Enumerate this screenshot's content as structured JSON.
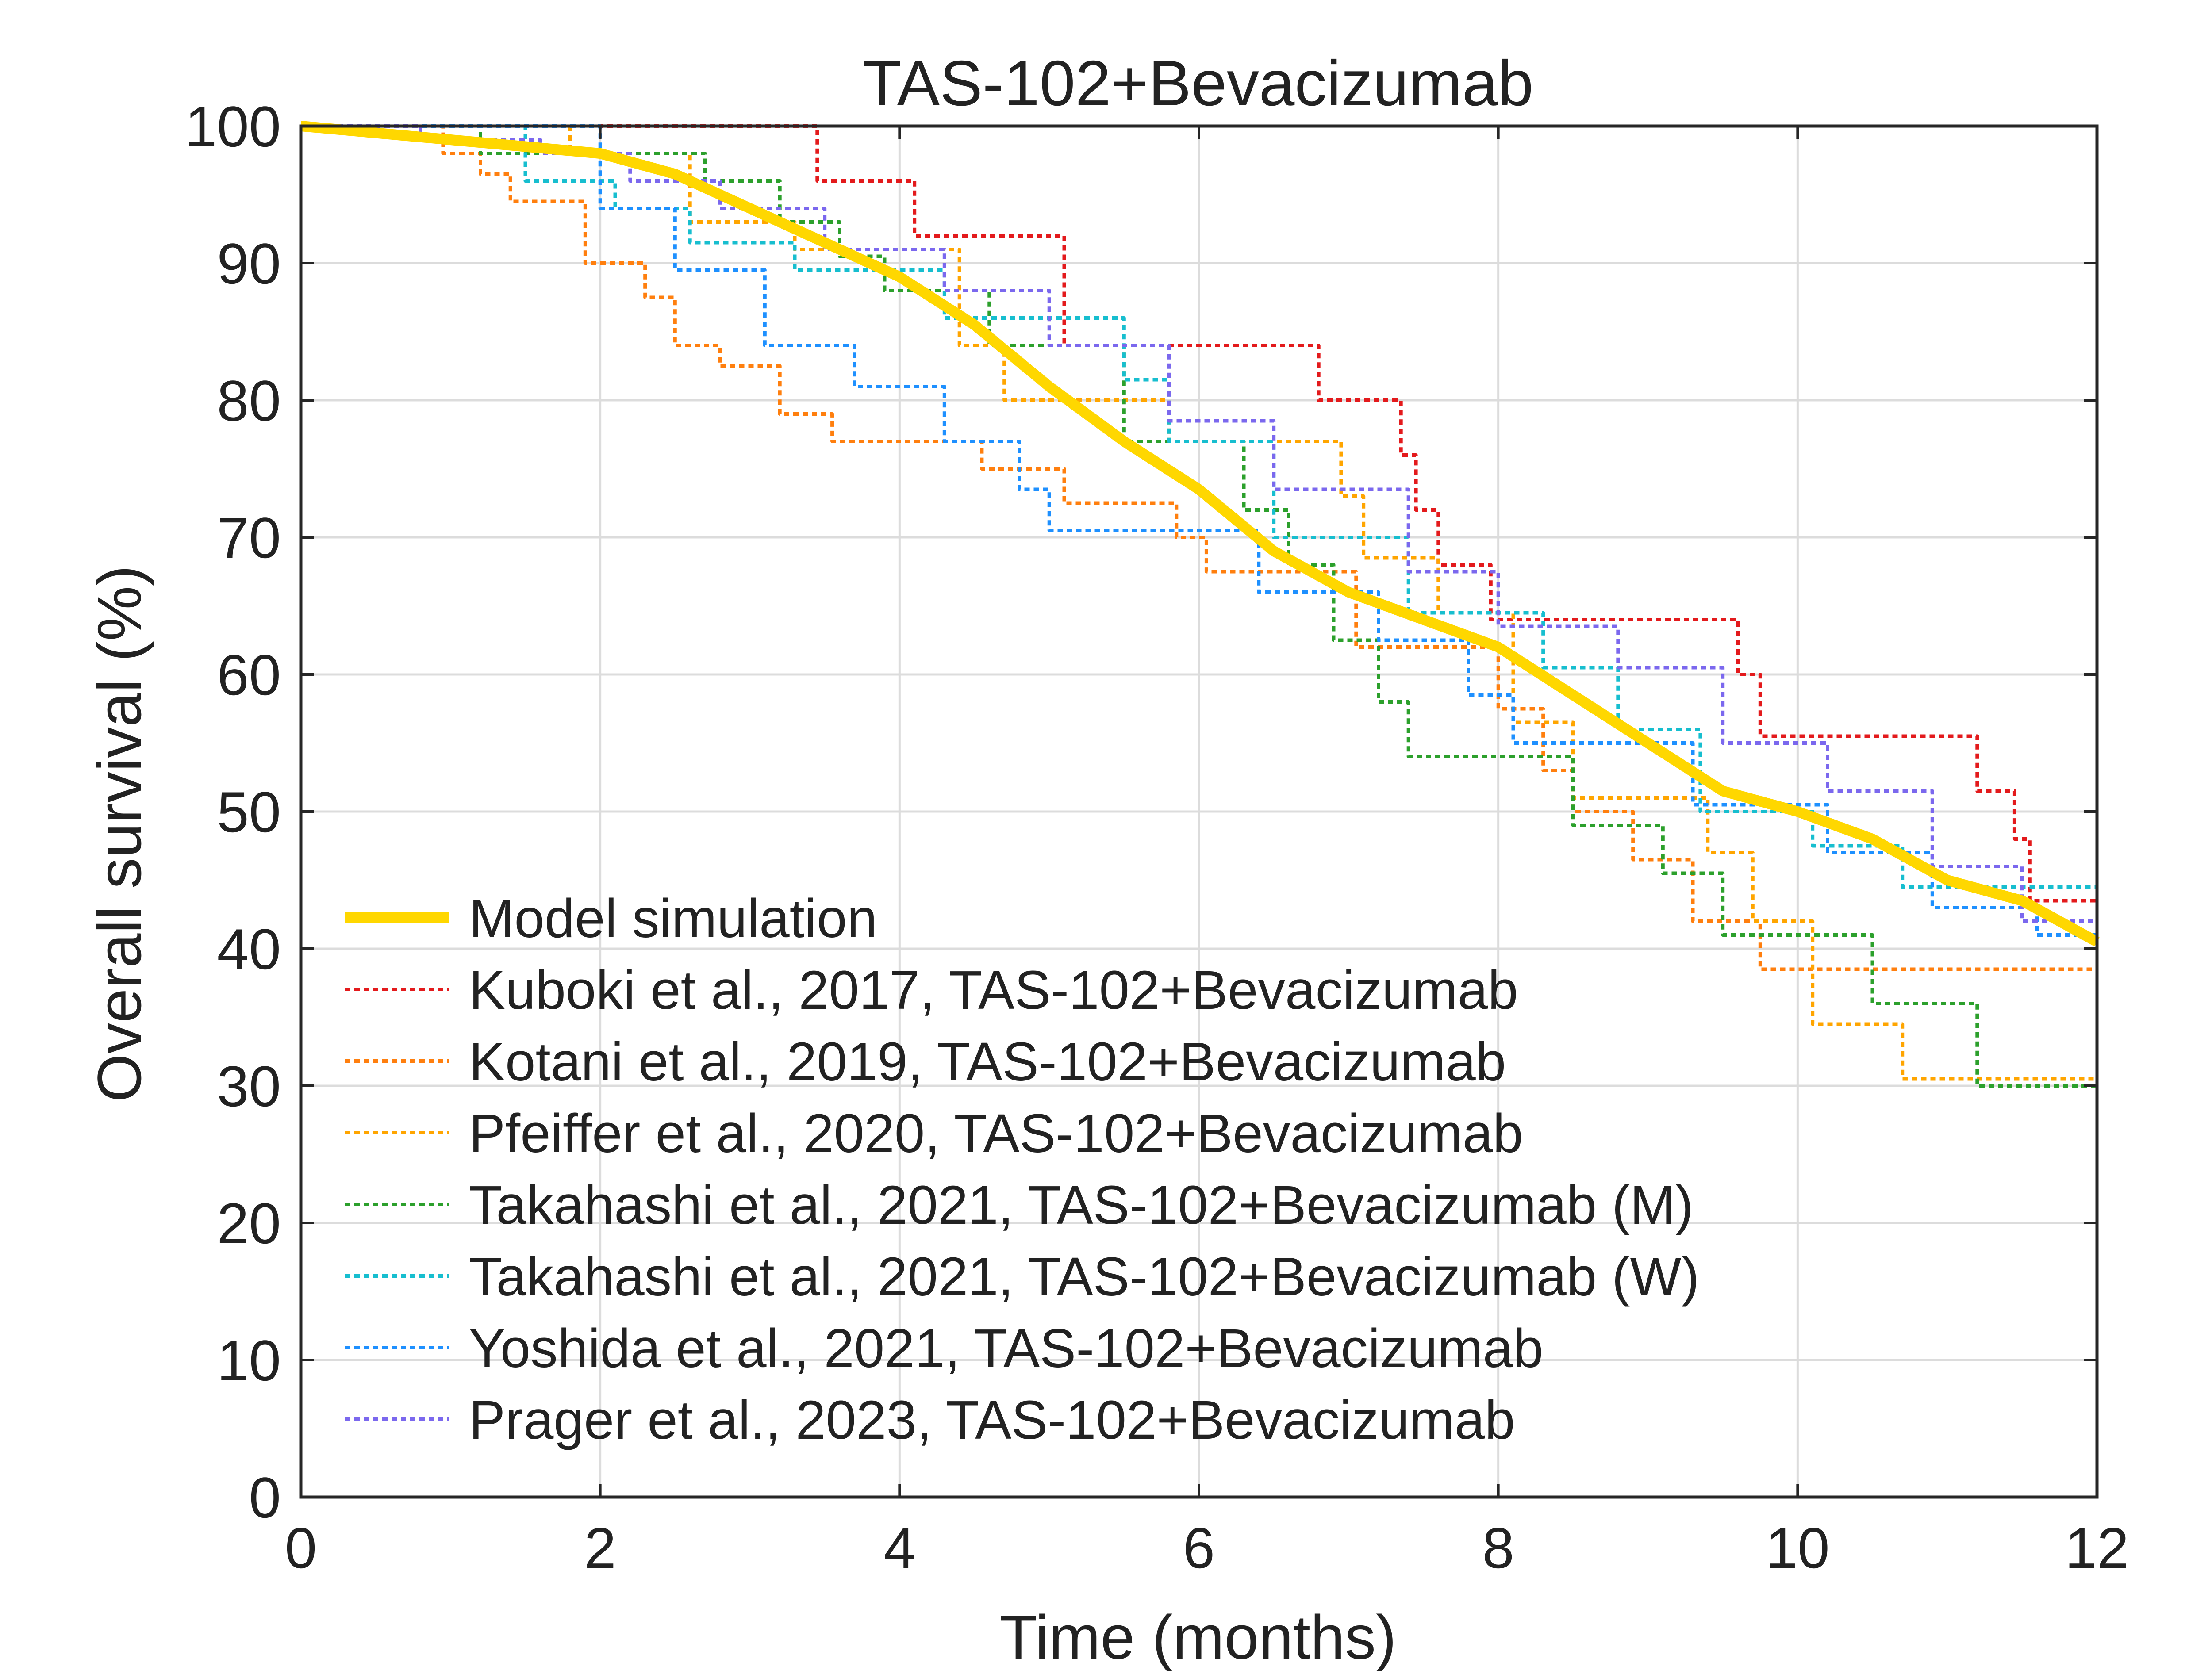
{
  "chart_data": {
    "type": "line",
    "title": "TAS-102+Bevacizumab",
    "xlabel": "Time (months)",
    "ylabel": "Overall survival (%)",
    "xlim": [
      0,
      12
    ],
    "ylim": [
      0,
      100
    ],
    "xticks": [
      0,
      2,
      4,
      6,
      8,
      10,
      12
    ],
    "yticks": [
      0,
      10,
      20,
      30,
      40,
      50,
      60,
      70,
      80,
      90,
      100
    ],
    "x_tick_labels": [
      "0",
      "2",
      "4",
      "6",
      "8",
      "10",
      "12"
    ],
    "y_tick_labels": [
      "0",
      "10",
      "20",
      "30",
      "40",
      "50",
      "60",
      "70",
      "80",
      "90",
      "100"
    ],
    "grid": true,
    "legend_position": "bottom-left",
    "series": [
      {
        "name": "Model simulation",
        "color": "#FFD700",
        "style": "solid",
        "x": [
          0,
          0.5,
          1,
          1.5,
          2,
          2.5,
          3,
          3.5,
          4,
          4.5,
          5,
          5.5,
          6,
          6.5,
          7,
          7.5,
          8,
          8.5,
          9,
          9.5,
          10,
          10.5,
          11,
          11.5,
          12
        ],
        "y": [
          100,
          99.5,
          99,
          98.5,
          98,
          96.5,
          94,
          91.5,
          89,
          85.5,
          81,
          77,
          73.5,
          69,
          66,
          64,
          62,
          58.5,
          55,
          51.5,
          50,
          48,
          45,
          43.5,
          40.5
        ]
      },
      {
        "name": "Kuboki et al., 2017, TAS-102+Bevacizumab",
        "color": "#E31A1C",
        "style": "dotted",
        "x": [
          0,
          3.45,
          3.45,
          4.1,
          4.1,
          5.1,
          5.1,
          6.8,
          6.8,
          7.35,
          7.35,
          7.45,
          7.45,
          7.6,
          7.6,
          7.95,
          7.95,
          8.25,
          8.25,
          9.6,
          9.6,
          9.75,
          9.75,
          11.2,
          11.2,
          11.45,
          11.45,
          11.55,
          11.55,
          12
        ],
        "y": [
          100,
          100,
          96,
          96,
          92,
          92,
          84,
          84,
          80,
          80,
          76,
          76,
          72,
          72,
          68,
          68,
          64,
          64,
          64,
          64,
          60,
          60,
          55.5,
          55.5,
          51.5,
          51.5,
          48,
          48,
          43.5,
          43.5
        ]
      },
      {
        "name": "Kotani et al., 2019, TAS-102+Bevacizumab",
        "color": "#FF7F0E",
        "style": "dotted",
        "x": [
          0,
          0.95,
          0.95,
          1.2,
          1.2,
          1.4,
          1.4,
          1.9,
          1.9,
          2.3,
          2.3,
          2.5,
          2.5,
          2.8,
          2.8,
          3.2,
          3.2,
          3.55,
          3.55,
          3.85,
          3.85,
          4.55,
          4.55,
          5.1,
          5.1,
          5.85,
          5.85,
          6.05,
          6.05,
          7.05,
          7.05,
          8.0,
          8.0,
          8.3,
          8.3,
          8.5,
          8.5,
          8.9,
          8.9,
          9.3,
          9.3,
          9.75,
          9.75,
          12
        ],
        "y": [
          100,
          100,
          98,
          98,
          96.5,
          96.5,
          94.5,
          94.5,
          90,
          90,
          87.5,
          87.5,
          84,
          84,
          82.5,
          82.5,
          79,
          79,
          77,
          77,
          77,
          77,
          75,
          75,
          72.5,
          72.5,
          70,
          70,
          67.5,
          67.5,
          62,
          62,
          57.5,
          57.5,
          53,
          53,
          50,
          50,
          46.5,
          46.5,
          42,
          42,
          38.5,
          38.5
        ]
      },
      {
        "name": "Pfeiffer et al., 2020, TAS-102+Bevacizumab",
        "color": "#FFA500",
        "style": "dotted",
        "x": [
          0,
          1.8,
          1.8,
          2.6,
          2.6,
          3.3,
          3.3,
          4.4,
          4.4,
          4.7,
          4.7,
          5.8,
          5.8,
          6.95,
          6.95,
          7.1,
          7.1,
          7.6,
          7.6,
          8.1,
          8.1,
          8.5,
          8.5,
          9.4,
          9.4,
          9.7,
          9.7,
          10.1,
          10.1,
          10.7,
          10.7,
          12
        ],
        "y": [
          100,
          100,
          98,
          98,
          93,
          93,
          91,
          91,
          84,
          84,
          80,
          80,
          77,
          77,
          73,
          73,
          68.5,
          68.5,
          64.5,
          64.5,
          56.5,
          56.5,
          51,
          51,
          47,
          47,
          42,
          42,
          34.5,
          34.5,
          30.5,
          30.5
        ]
      },
      {
        "name": "Takahashi et al., 2021, TAS-102+Bevacizumab (M)",
        "color": "#2CA02C",
        "style": "dotted",
        "x": [
          0,
          1.2,
          1.2,
          2.7,
          2.7,
          3.2,
          3.2,
          3.6,
          3.6,
          3.9,
          3.9,
          4.6,
          4.6,
          5.5,
          5.5,
          6.3,
          6.3,
          6.6,
          6.6,
          6.9,
          6.9,
          7.2,
          7.2,
          7.4,
          7.4,
          8.5,
          8.5,
          9.1,
          9.1,
          9.5,
          9.5,
          10.5,
          10.5,
          11.2,
          11.2,
          12
        ],
        "y": [
          100,
          100,
          98,
          98,
          96,
          96,
          93,
          93,
          90.5,
          90.5,
          88,
          88,
          84,
          84,
          77,
          77,
          72,
          72,
          68,
          68,
          62.5,
          62.5,
          58,
          58,
          54,
          54,
          49,
          49,
          45.5,
          45.5,
          41,
          41,
          36,
          36,
          30,
          30
        ]
      },
      {
        "name": "Takahashi et al., 2021, TAS-102+Bevacizumab (W)",
        "color": "#17BECF",
        "style": "dotted",
        "x": [
          0,
          1.5,
          1.5,
          2.1,
          2.1,
          2.6,
          2.6,
          3.3,
          3.3,
          4.3,
          4.3,
          5.5,
          5.5,
          5.8,
          5.8,
          6.5,
          6.5,
          7.4,
          7.4,
          8.3,
          8.3,
          8.8,
          8.8,
          9.35,
          9.35,
          10.1,
          10.1,
          10.7,
          10.7,
          12
        ],
        "y": [
          100,
          100,
          96,
          96,
          94,
          94,
          91.5,
          91.5,
          89.5,
          89.5,
          86,
          86,
          81.5,
          81.5,
          77,
          77,
          70,
          70,
          64.5,
          64.5,
          60.5,
          60.5,
          56,
          56,
          50,
          50,
          47.5,
          47.5,
          44.5,
          44.5
        ]
      },
      {
        "name": "Yoshida et al., 2021, TAS-102+Bevacizumab",
        "color": "#1E90FF",
        "style": "dotted",
        "x": [
          0,
          2.0,
          2.0,
          2.5,
          2.5,
          3.1,
          3.1,
          3.7,
          3.7,
          4.3,
          4.3,
          4.8,
          4.8,
          5.0,
          5.0,
          6.4,
          6.4,
          7.2,
          7.2,
          7.8,
          7.8,
          8.1,
          8.1,
          9.3,
          9.3,
          10.2,
          10.2,
          10.9,
          10.9,
          11.6,
          11.6,
          12
        ],
        "y": [
          100,
          100,
          94,
          94,
          89.5,
          89.5,
          84,
          84,
          81,
          81,
          77,
          77,
          73.5,
          73.5,
          70.5,
          70.5,
          66,
          66,
          62.5,
          62.5,
          58.5,
          58.5,
          55,
          55,
          50.5,
          50.5,
          47,
          47,
          43,
          43,
          41,
          41
        ]
      },
      {
        "name": "Prager et al., 2023, TAS-102+Bevacizumab",
        "color": "#7B68EE",
        "style": "dotted",
        "x": [
          0,
          0.8,
          0.8,
          1.6,
          1.6,
          2.2,
          2.2,
          2.8,
          2.8,
          3.5,
          3.5,
          4.3,
          4.3,
          5.0,
          5.0,
          5.8,
          5.8,
          6.5,
          6.5,
          7.4,
          7.4,
          8.0,
          8.0,
          8.8,
          8.8,
          9.5,
          9.5,
          10.2,
          10.2,
          10.9,
          10.9,
          11.5,
          11.5,
          12
        ],
        "y": [
          100,
          100,
          99,
          99,
          98,
          98,
          96,
          96,
          94,
          94,
          91,
          91,
          88,
          88,
          84,
          84,
          78.5,
          78.5,
          73.5,
          73.5,
          67.5,
          67.5,
          63.5,
          63.5,
          60.5,
          60.5,
          55,
          55,
          51.5,
          51.5,
          46,
          46,
          42,
          42
        ]
      }
    ]
  }
}
